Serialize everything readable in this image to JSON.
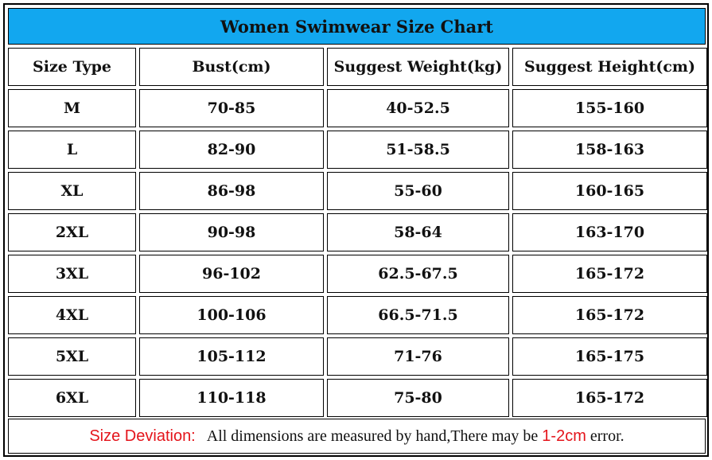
{
  "title": "Women Swimwear Size Chart",
  "headers": [
    "Size Type",
    "Bust(cm)",
    "Suggest Weight(kg)",
    "Suggest Height(cm)"
  ],
  "rows": [
    [
      "M",
      "70-85",
      "40-52.5",
      "155-160"
    ],
    [
      "L",
      "82-90",
      "51-58.5",
      "158-163"
    ],
    [
      "XL",
      "86-98",
      "55-60",
      "160-165"
    ],
    [
      "2XL",
      "90-98",
      "58-64",
      "163-170"
    ],
    [
      "3XL",
      "96-102",
      "62.5-67.5",
      "165-172"
    ],
    [
      "4XL",
      "100-106",
      "66.5-71.5",
      "165-172"
    ],
    [
      "5XL",
      "105-112",
      "71-76",
      "165-175"
    ],
    [
      "6XL",
      "110-118",
      "75-80",
      "165-172"
    ]
  ],
  "footer": {
    "label": "Size Deviation:",
    "text": "All dimensions are measured by hand,There may be",
    "range": "1-2cm",
    "end": "error."
  },
  "colors": {
    "title_bar": "#12a7ef",
    "accent_red": "#e4141b",
    "border": "#000000"
  }
}
